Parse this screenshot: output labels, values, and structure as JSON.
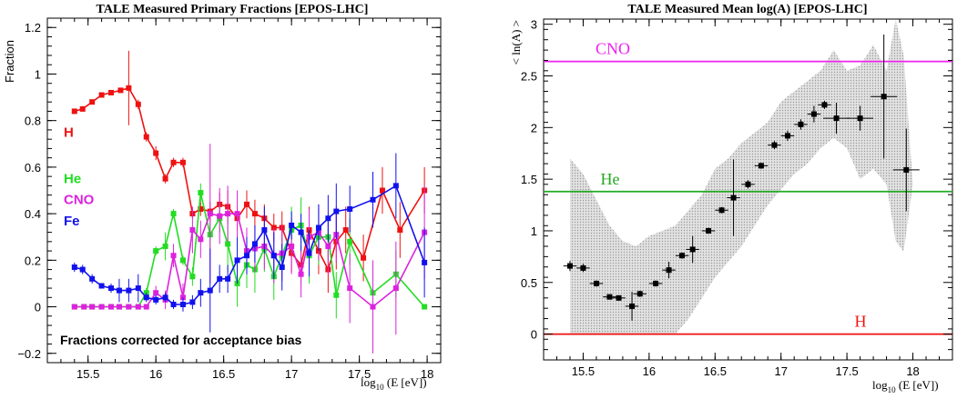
{
  "chart_data": [
    {
      "type": "line",
      "title": "TALE Measured Primary Fractions [EPOS-LHC]",
      "ylabel": "Fraction",
      "xlabel_main": "log",
      "xlabel_sub": "10",
      "xlabel_tail": " (E [eV])",
      "xlim": [
        15.2,
        18.1
      ],
      "ylim": [
        -0.24,
        1.24
      ],
      "xticks": [
        15.5,
        16,
        16.5,
        17,
        17.5,
        18
      ],
      "xtick_labels": [
        "15.5",
        "16",
        "16.5",
        "17",
        "17.5",
        "18"
      ],
      "yticks": [
        -0.2,
        0,
        0.2,
        0.4,
        0.6,
        0.8,
        1,
        1.2
      ],
      "ytick_labels": [
        "−0.2",
        "0",
        "0.2",
        "0.4",
        "0.6",
        "0.8",
        "1",
        "1.2"
      ],
      "x": [
        15.4,
        15.5,
        15.6,
        15.7,
        15.8,
        15.9,
        16.0,
        16.1,
        16.2,
        16.3,
        16.4,
        16.5,
        16.6,
        16.7,
        16.8,
        16.9,
        17.0,
        17.1,
        17.2,
        17.3,
        17.4,
        17.5,
        17.6,
        17.7,
        17.8,
        17.9,
        18.0
      ],
      "series": [
        {
          "name": "H",
          "color": "#ee1111",
          "x": [
            15.4,
            15.46,
            15.53,
            15.6,
            15.67,
            15.74,
            15.8,
            15.87,
            15.93,
            16.0,
            16.07,
            16.13,
            16.2,
            16.27,
            16.33,
            16.4,
            16.47,
            16.53,
            16.6,
            16.67,
            16.73,
            16.8,
            16.87,
            16.93,
            17.0,
            17.07,
            17.13,
            17.2,
            17.27,
            17.33,
            17.4,
            17.53,
            17.67,
            17.8,
            17.98
          ],
          "y": [
            0.84,
            0.85,
            0.88,
            0.91,
            0.92,
            0.93,
            0.94,
            0.87,
            0.73,
            0.66,
            0.55,
            0.62,
            0.62,
            0.4,
            0.42,
            0.41,
            0.44,
            0.43,
            0.38,
            0.44,
            0.4,
            0.38,
            0.34,
            0.34,
            0.23,
            0.18,
            0.33,
            0.24,
            0.16,
            0.28,
            0.33,
            0.21,
            0.5,
            0.33,
            0.5
          ],
          "err": [
            0.01,
            0.01,
            0.01,
            0.01,
            0.01,
            0.01,
            0.16,
            0.02,
            0.02,
            0.03,
            0.02,
            0.02,
            0.02,
            0.02,
            0.03,
            0.04,
            0.05,
            0.07,
            0.05,
            0.06,
            0.06,
            0.06,
            0.06,
            0.07,
            0.08,
            0.08,
            0.1,
            0.1,
            0.1,
            0.12,
            0.1,
            0.1,
            0.1,
            0.12,
            0.1
          ],
          "label_y": 0.75
        },
        {
          "name": "He",
          "color": "#22dd22",
          "x": [
            15.4,
            15.47,
            15.53,
            15.6,
            15.67,
            15.73,
            15.8,
            15.87,
            15.93,
            16.0,
            16.07,
            16.13,
            16.2,
            16.27,
            16.33,
            16.4,
            16.47,
            16.53,
            16.6,
            16.67,
            16.73,
            16.8,
            16.87,
            16.93,
            17.0,
            17.07,
            17.13,
            17.2,
            17.27,
            17.33,
            17.43,
            17.6,
            17.77,
            17.98
          ],
          "y": [
            0.0,
            0.0,
            0.0,
            0.0,
            0.0,
            0.0,
            0.0,
            0.0,
            0.06,
            0.24,
            0.26,
            0.4,
            0.2,
            0.13,
            0.49,
            0.31,
            0.38,
            0.27,
            0.1,
            0.18,
            0.16,
            0.25,
            0.13,
            0.22,
            0.33,
            0.35,
            0.22,
            0.3,
            0.3,
            0.05,
            0.28,
            0.06,
            0.14,
            0.0
          ],
          "err": [
            0.005,
            0.005,
            0.005,
            0.005,
            0.005,
            0.005,
            0.005,
            0.005,
            0.02,
            0.02,
            0.06,
            0.02,
            0.02,
            0.04,
            0.04,
            0.06,
            0.06,
            0.12,
            0.1,
            0.1,
            0.1,
            0.1,
            0.1,
            0.1,
            0.1,
            0.12,
            0.12,
            0.12,
            0.1,
            0.1,
            0.1,
            0.1,
            0.1,
            0.005
          ],
          "label_y": 0.55
        },
        {
          "name": "CNO",
          "color": "#dd22dd",
          "x": [
            15.4,
            15.47,
            15.53,
            15.6,
            15.67,
            15.73,
            15.8,
            15.87,
            15.93,
            16.0,
            16.07,
            16.13,
            16.2,
            16.27,
            16.33,
            16.4,
            16.47,
            16.53,
            16.6,
            16.67,
            16.73,
            16.8,
            16.87,
            16.93,
            17.0,
            17.07,
            17.13,
            17.2,
            17.27,
            17.33,
            17.43,
            17.6,
            17.77,
            17.98
          ],
          "y": [
            0.0,
            0.0,
            0.0,
            0.0,
            0.0,
            0.0,
            0.0,
            0.0,
            0.0,
            0.06,
            0.03,
            0.22,
            0.04,
            0.33,
            0.29,
            0.4,
            0.39,
            0.4,
            0.4,
            0.24,
            0.25,
            0.26,
            0.22,
            0.23,
            0.26,
            0.14,
            0.3,
            0.32,
            0.26,
            0.31,
            0.08,
            0.0,
            0.08,
            0.32
          ],
          "err": [
            0.005,
            0.005,
            0.005,
            0.005,
            0.005,
            0.005,
            0.005,
            0.005,
            0.005,
            0.03,
            0.04,
            0.05,
            0.06,
            0.1,
            0.08,
            0.3,
            0.12,
            0.12,
            0.1,
            0.1,
            0.1,
            0.1,
            0.12,
            0.12,
            0.12,
            0.1,
            0.12,
            0.12,
            0.12,
            0.12,
            0.15,
            0.2,
            0.2,
            0.2
          ],
          "label_y": 0.46
        },
        {
          "name": "Fe",
          "color": "#1111ee",
          "x": [
            15.4,
            15.46,
            15.53,
            15.6,
            15.67,
            15.73,
            15.8,
            15.87,
            15.93,
            16.0,
            16.07,
            16.13,
            16.2,
            16.27,
            16.33,
            16.4,
            16.47,
            16.53,
            16.6,
            16.67,
            16.73,
            16.8,
            16.87,
            16.93,
            17.0,
            17.07,
            17.13,
            17.2,
            17.27,
            17.33,
            17.43,
            17.6,
            17.77,
            17.98
          ],
          "y": [
            0.17,
            0.16,
            0.12,
            0.09,
            0.08,
            0.07,
            0.07,
            0.08,
            0.04,
            0.03,
            0.04,
            0.01,
            0.01,
            0.02,
            0.06,
            0.07,
            0.12,
            0.12,
            0.2,
            0.22,
            0.27,
            0.33,
            0.22,
            0.17,
            0.35,
            0.32,
            0.23,
            0.34,
            0.38,
            0.41,
            0.42,
            0.46,
            0.52,
            0.19
          ],
          "err": [
            0.02,
            0.02,
            0.02,
            0.01,
            0.02,
            0.05,
            0.05,
            0.06,
            0.02,
            0.02,
            0.02,
            0.02,
            0.03,
            0.03,
            0.06,
            0.18,
            0.06,
            0.06,
            0.1,
            0.08,
            0.08,
            0.1,
            0.1,
            0.1,
            0.06,
            0.08,
            0.1,
            0.1,
            0.1,
            0.12,
            0.1,
            0.12,
            0.14,
            0.15
          ],
          "label_y": 0.37
        }
      ],
      "annotation": "Fractions corrected for acceptance bias",
      "grid": false
    },
    {
      "type": "scatter",
      "title": "TALE Measured Mean log(A) [EPOS-LHC]",
      "ylabel": "< ln(A) >",
      "xlabel_main": "log",
      "xlabel_sub": "10",
      "xlabel_tail": " (E [eV])",
      "xlim": [
        15.2,
        18.3
      ],
      "ylim": [
        -0.25,
        3.05
      ],
      "xticks": [
        15.5,
        16,
        16.5,
        17,
        17.5,
        18
      ],
      "xtick_labels": [
        "15.5",
        "16",
        "16.5",
        "17",
        "17.5",
        "18"
      ],
      "yticks": [
        0,
        0.5,
        1,
        1.5,
        2,
        2.5,
        3
      ],
      "ytick_labels": [
        "0",
        "0.5",
        "1",
        "1.5",
        "2",
        "2.5",
        "3"
      ],
      "points": {
        "x": [
          15.4,
          15.5,
          15.6,
          15.7,
          15.77,
          15.87,
          15.93,
          16.05,
          16.15,
          16.25,
          16.33,
          16.45,
          16.55,
          16.64,
          16.75,
          16.85,
          16.95,
          17.05,
          17.15,
          17.25,
          17.33,
          17.42,
          17.6,
          17.78,
          17.95
        ],
        "y": [
          0.66,
          0.64,
          0.49,
          0.36,
          0.35,
          0.27,
          0.39,
          0.49,
          0.62,
          0.76,
          0.82,
          1.0,
          1.2,
          1.32,
          1.45,
          1.63,
          1.83,
          1.92,
          2.03,
          2.13,
          2.22,
          2.09,
          2.09,
          2.3,
          1.59
        ],
        "yerr": [
          0.05,
          0.04,
          0.03,
          0.02,
          0.02,
          0.14,
          0.03,
          0.03,
          0.08,
          0.03,
          0.13,
          0.03,
          0.03,
          0.37,
          0.04,
          0.03,
          0.04,
          0.05,
          0.05,
          0.08,
          0.04,
          0.15,
          0.12,
          0.6,
          0.4
        ],
        "xerr": [
          0.05,
          0.05,
          0.05,
          0.05,
          0.05,
          0.05,
          0.05,
          0.05,
          0.05,
          0.05,
          0.05,
          0.05,
          0.05,
          0.05,
          0.05,
          0.05,
          0.05,
          0.05,
          0.05,
          0.05,
          0.05,
          0.1,
          0.1,
          0.1,
          0.1
        ]
      },
      "band": {
        "x": [
          15.4,
          15.5,
          15.6,
          15.7,
          15.8,
          15.9,
          16.0,
          16.1,
          16.2,
          16.3,
          16.4,
          16.5,
          16.6,
          16.7,
          16.8,
          16.9,
          17.0,
          17.1,
          17.2,
          17.3,
          17.4,
          17.5,
          17.6,
          17.7,
          17.8,
          17.87,
          17.93,
          18.0
        ],
        "upper": [
          1.7,
          1.55,
          1.3,
          1.05,
          0.9,
          0.85,
          0.95,
          1.0,
          1.05,
          1.2,
          1.35,
          1.6,
          1.7,
          1.85,
          1.95,
          2.05,
          2.25,
          2.35,
          2.45,
          2.55,
          2.75,
          2.55,
          2.6,
          2.8,
          2.55,
          3.05,
          2.7,
          1.45
        ],
        "lower": [
          0.0,
          0.0,
          0.0,
          0.0,
          0.0,
          0.0,
          0.0,
          0.0,
          0.0,
          0.15,
          0.35,
          0.55,
          0.7,
          0.85,
          1.05,
          1.25,
          1.4,
          1.55,
          1.65,
          1.8,
          1.9,
          1.8,
          1.5,
          1.6,
          1.45,
          0.9,
          0.8,
          1.45
        ]
      },
      "reference_lines": [
        {
          "name": "CNO",
          "value": 2.64,
          "color": "#ee22ee"
        },
        {
          "name": "He",
          "value": 1.38,
          "color": "#22aa22"
        },
        {
          "name": "H",
          "value": 0.0,
          "color": "#ee1111"
        }
      ],
      "grid": false
    }
  ]
}
